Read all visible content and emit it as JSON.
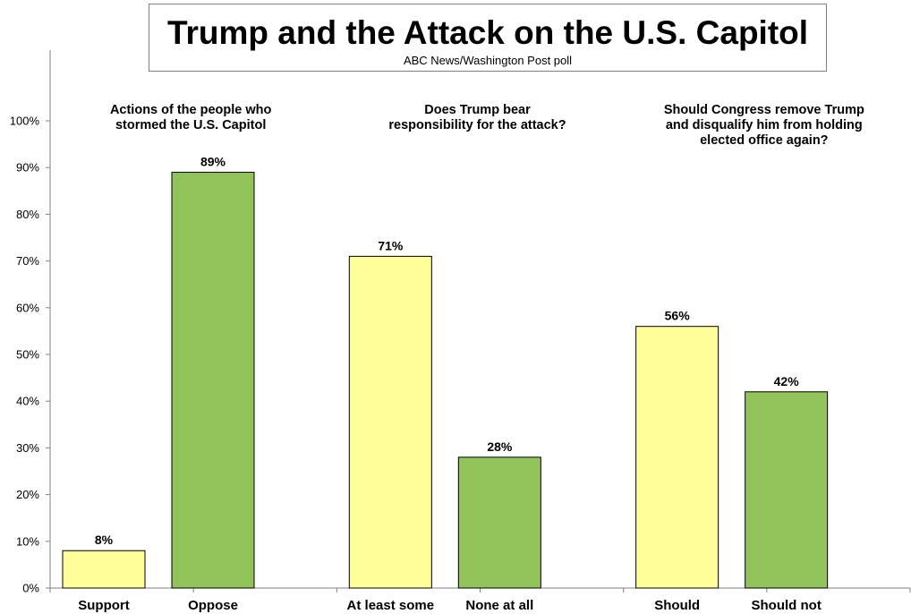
{
  "title": "Trump and the Attack on the U.S. Capitol",
  "subtitle": "ABC News/Washington Post poll",
  "chart_data": {
    "type": "bar",
    "title": "Trump and the Attack on the U.S. Capitol",
    "subtitle": "ABC News/Washington Post poll",
    "ylim": [
      0,
      100
    ],
    "y_ticks": [
      "0%",
      "10%",
      "20%",
      "30%",
      "40%",
      "50%",
      "60%",
      "70%",
      "80%",
      "90%",
      "100%"
    ],
    "grid": false,
    "colors": {
      "first": "#ffff99",
      "second": "#92c35a",
      "border": "#000000"
    },
    "groups": [
      {
        "question": [
          "Actions of the people who",
          "stormed the U.S. Capitol"
        ],
        "categories": [
          "Support",
          "Oppose"
        ],
        "values": [
          8,
          89
        ],
        "labels": [
          "8%",
          "89%"
        ]
      },
      {
        "question": [
          "Does Trump bear",
          "responsibility for the attack?"
        ],
        "categories": [
          "At least some",
          "None at all"
        ],
        "values": [
          71,
          28
        ],
        "labels": [
          "71%",
          "28%"
        ]
      },
      {
        "question": [
          "Should Congress remove Trump",
          "and disqualify him from holding",
          "elected office again?"
        ],
        "categories": [
          "Should",
          "Should not"
        ],
        "values": [
          56,
          42
        ],
        "labels": [
          "56%",
          "42%"
        ]
      }
    ]
  }
}
